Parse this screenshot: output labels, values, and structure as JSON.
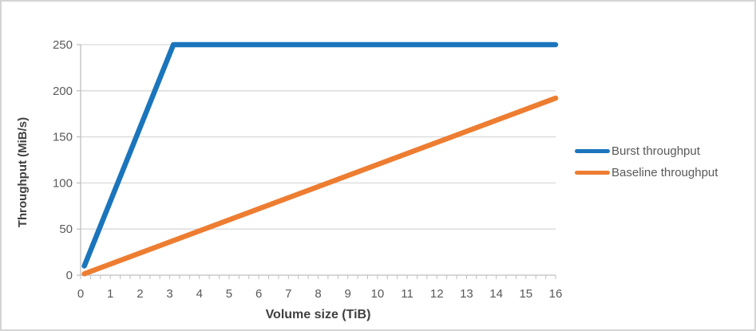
{
  "chart_data": {
    "type": "line",
    "title": "",
    "xlabel": "Volume size (TiB)",
    "ylabel": "Throughput (MiB/s)",
    "xlim": [
      0,
      16
    ],
    "ylim": [
      0,
      250
    ],
    "x_ticks": [
      0,
      1,
      2,
      3,
      4,
      5,
      6,
      7,
      8,
      9,
      10,
      11,
      12,
      13,
      14,
      15,
      16
    ],
    "y_ticks": [
      0,
      50,
      100,
      150,
      200,
      250
    ],
    "grid": "horizontal gridlines on, no vertical gridlines",
    "legend_position": "right-middle",
    "series": [
      {
        "name": "Burst throughput",
        "color": "#1B75BC",
        "points": [
          [
            0.125,
            10
          ],
          [
            3.125,
            250
          ],
          [
            16,
            250
          ]
        ]
      },
      {
        "name": "Baseline throughput",
        "color": "#ED7D31",
        "points": [
          [
            0.125,
            1.5
          ],
          [
            16,
            192
          ]
        ]
      }
    ]
  },
  "colors": {
    "background": "#FFFFFF",
    "frame_border": "#D4D4D4",
    "gridline": "#D9D9D9",
    "axis_line": "#BFBFBF",
    "tick_label_text": "#595959",
    "axis_title_text": "#404040",
    "legend_text": "#595959"
  }
}
